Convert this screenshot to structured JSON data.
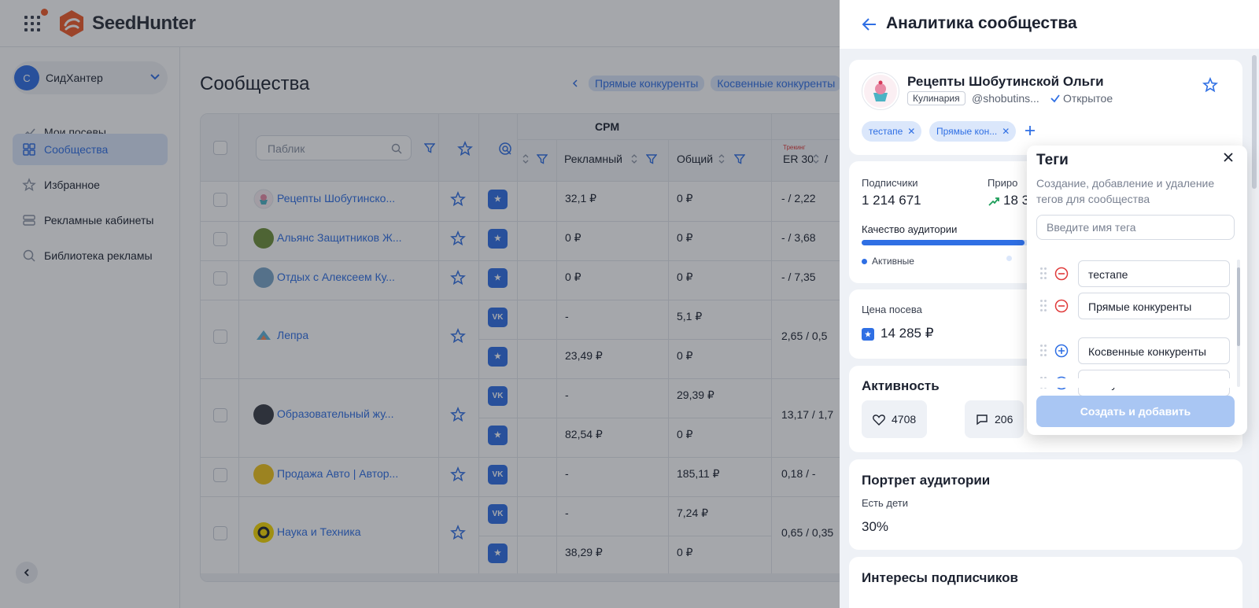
{
  "brand": {
    "name": "SeedHunter"
  },
  "account": {
    "initial": "С",
    "name": "СидХантер"
  },
  "nav": {
    "items": [
      {
        "label": "Мои посевы",
        "icon": "trend-icon"
      },
      {
        "label": "Сообщества",
        "icon": "grid-icon",
        "active": true
      },
      {
        "label": "Избранное",
        "icon": "star-icon"
      },
      {
        "label": "Рекламные кабинеты",
        "icon": "cabinets-icon"
      },
      {
        "label": "Библиотека рекламы",
        "icon": "search-icon"
      }
    ]
  },
  "page": {
    "title": "Сообщества",
    "filter_chips": [
      "Прямые конкуренты",
      "Косвенные конкуренты"
    ]
  },
  "table": {
    "search_placeholder": "Паблик",
    "group_header": "CPM",
    "columns": {
      "advertising": "Рекламный",
      "total": "Общий",
      "er": "ER 30",
      "er_sep": "/",
      "tracking": "Трекинг"
    },
    "rows": [
      {
        "name": "Рецепты Шобутинско...",
        "avatar_color": "#e8a0b4",
        "sub": [
          {
            "platform": "star",
            "ad": "32,1 ₽",
            "total": "0 ₽"
          }
        ],
        "er": "- / 2,22"
      },
      {
        "name": "Альянс Защитников Ж...",
        "avatar_color": "#6f8f3a",
        "sub": [
          {
            "platform": "star",
            "ad": "0 ₽",
            "total": "0 ₽"
          }
        ],
        "er": "- / 3,68"
      },
      {
        "name": "Отдых с Алексеем Ку...",
        "avatar_color": "#7aa6c9",
        "sub": [
          {
            "platform": "star",
            "ad": "0 ₽",
            "total": "0 ₽"
          }
        ],
        "er": "- / 7,35"
      },
      {
        "name": "Лепра",
        "avatar_color": "#5fb3d9",
        "sub": [
          {
            "platform": "vk",
            "ad": "-",
            "total": "5,1 ₽"
          },
          {
            "platform": "star",
            "ad": "23,49 ₽",
            "total": "0 ₽"
          }
        ],
        "er": "2,65 / 0,5"
      },
      {
        "name": "Образовательный жу...",
        "avatar_color": "#3a3d45",
        "sub": [
          {
            "platform": "vk",
            "ad": "-",
            "total": "29,39 ₽"
          },
          {
            "platform": "star",
            "ad": "82,54 ₽",
            "total": "0 ₽"
          }
        ],
        "er": "13,17 / 1,7"
      },
      {
        "name": "Продажа Авто | Автор...",
        "avatar_color": "#f0c419",
        "sub": [
          {
            "platform": "vk",
            "ad": "-",
            "total": "185,11 ₽"
          }
        ],
        "er": "0,18 / -"
      },
      {
        "name": "Наука и Техника",
        "avatar_color": "#f5d800",
        "sub": [
          {
            "platform": "vk",
            "ad": "-",
            "total": "7,24 ₽"
          },
          {
            "platform": "star",
            "ad": "38,29 ₽",
            "total": "0 ₽"
          }
        ],
        "er": "0,65 / 0,35"
      }
    ]
  },
  "drawer": {
    "title": "Аналитика сообщества",
    "community": {
      "name": "Рецепты Шобутинской Ольги",
      "category": "Кулинария",
      "handle": "@shobutins...",
      "status": "Открытое",
      "tags": [
        "тестапе",
        "Прямые кон..."
      ]
    },
    "stats": {
      "subscribers_label": "Подписчики",
      "subscribers": "1 214 671",
      "growth_label": "Приро",
      "growth": "18 3",
      "quality_label": "Качество аудитории",
      "quality_active_fraction": 0.45,
      "legend_active": "Активные"
    },
    "price": {
      "label": "Цена посева",
      "value": "14 285 ₽"
    },
    "activity": {
      "title": "Активность",
      "likes": "4708",
      "comments": "206"
    },
    "portrait": {
      "title": "Портрет аудитории",
      "label": "Есть дети",
      "value": "30%"
    },
    "interests": {
      "title": "Интересы подписчиков"
    }
  },
  "tags_popover": {
    "title": "Теги",
    "description": "Создание, добавление и удаление тегов для сообщества",
    "input_placeholder": "Введите имя тега",
    "assigned": [
      "тестапе",
      "Прямые конкуренты"
    ],
    "available": [
      "Косвенные конкуренты",
      "Не публиковать"
    ],
    "button": "Создать и добавить"
  },
  "colors": {
    "accent": "#2f6fe4",
    "remove": "#e03b3b",
    "brand": "#f05a28"
  }
}
